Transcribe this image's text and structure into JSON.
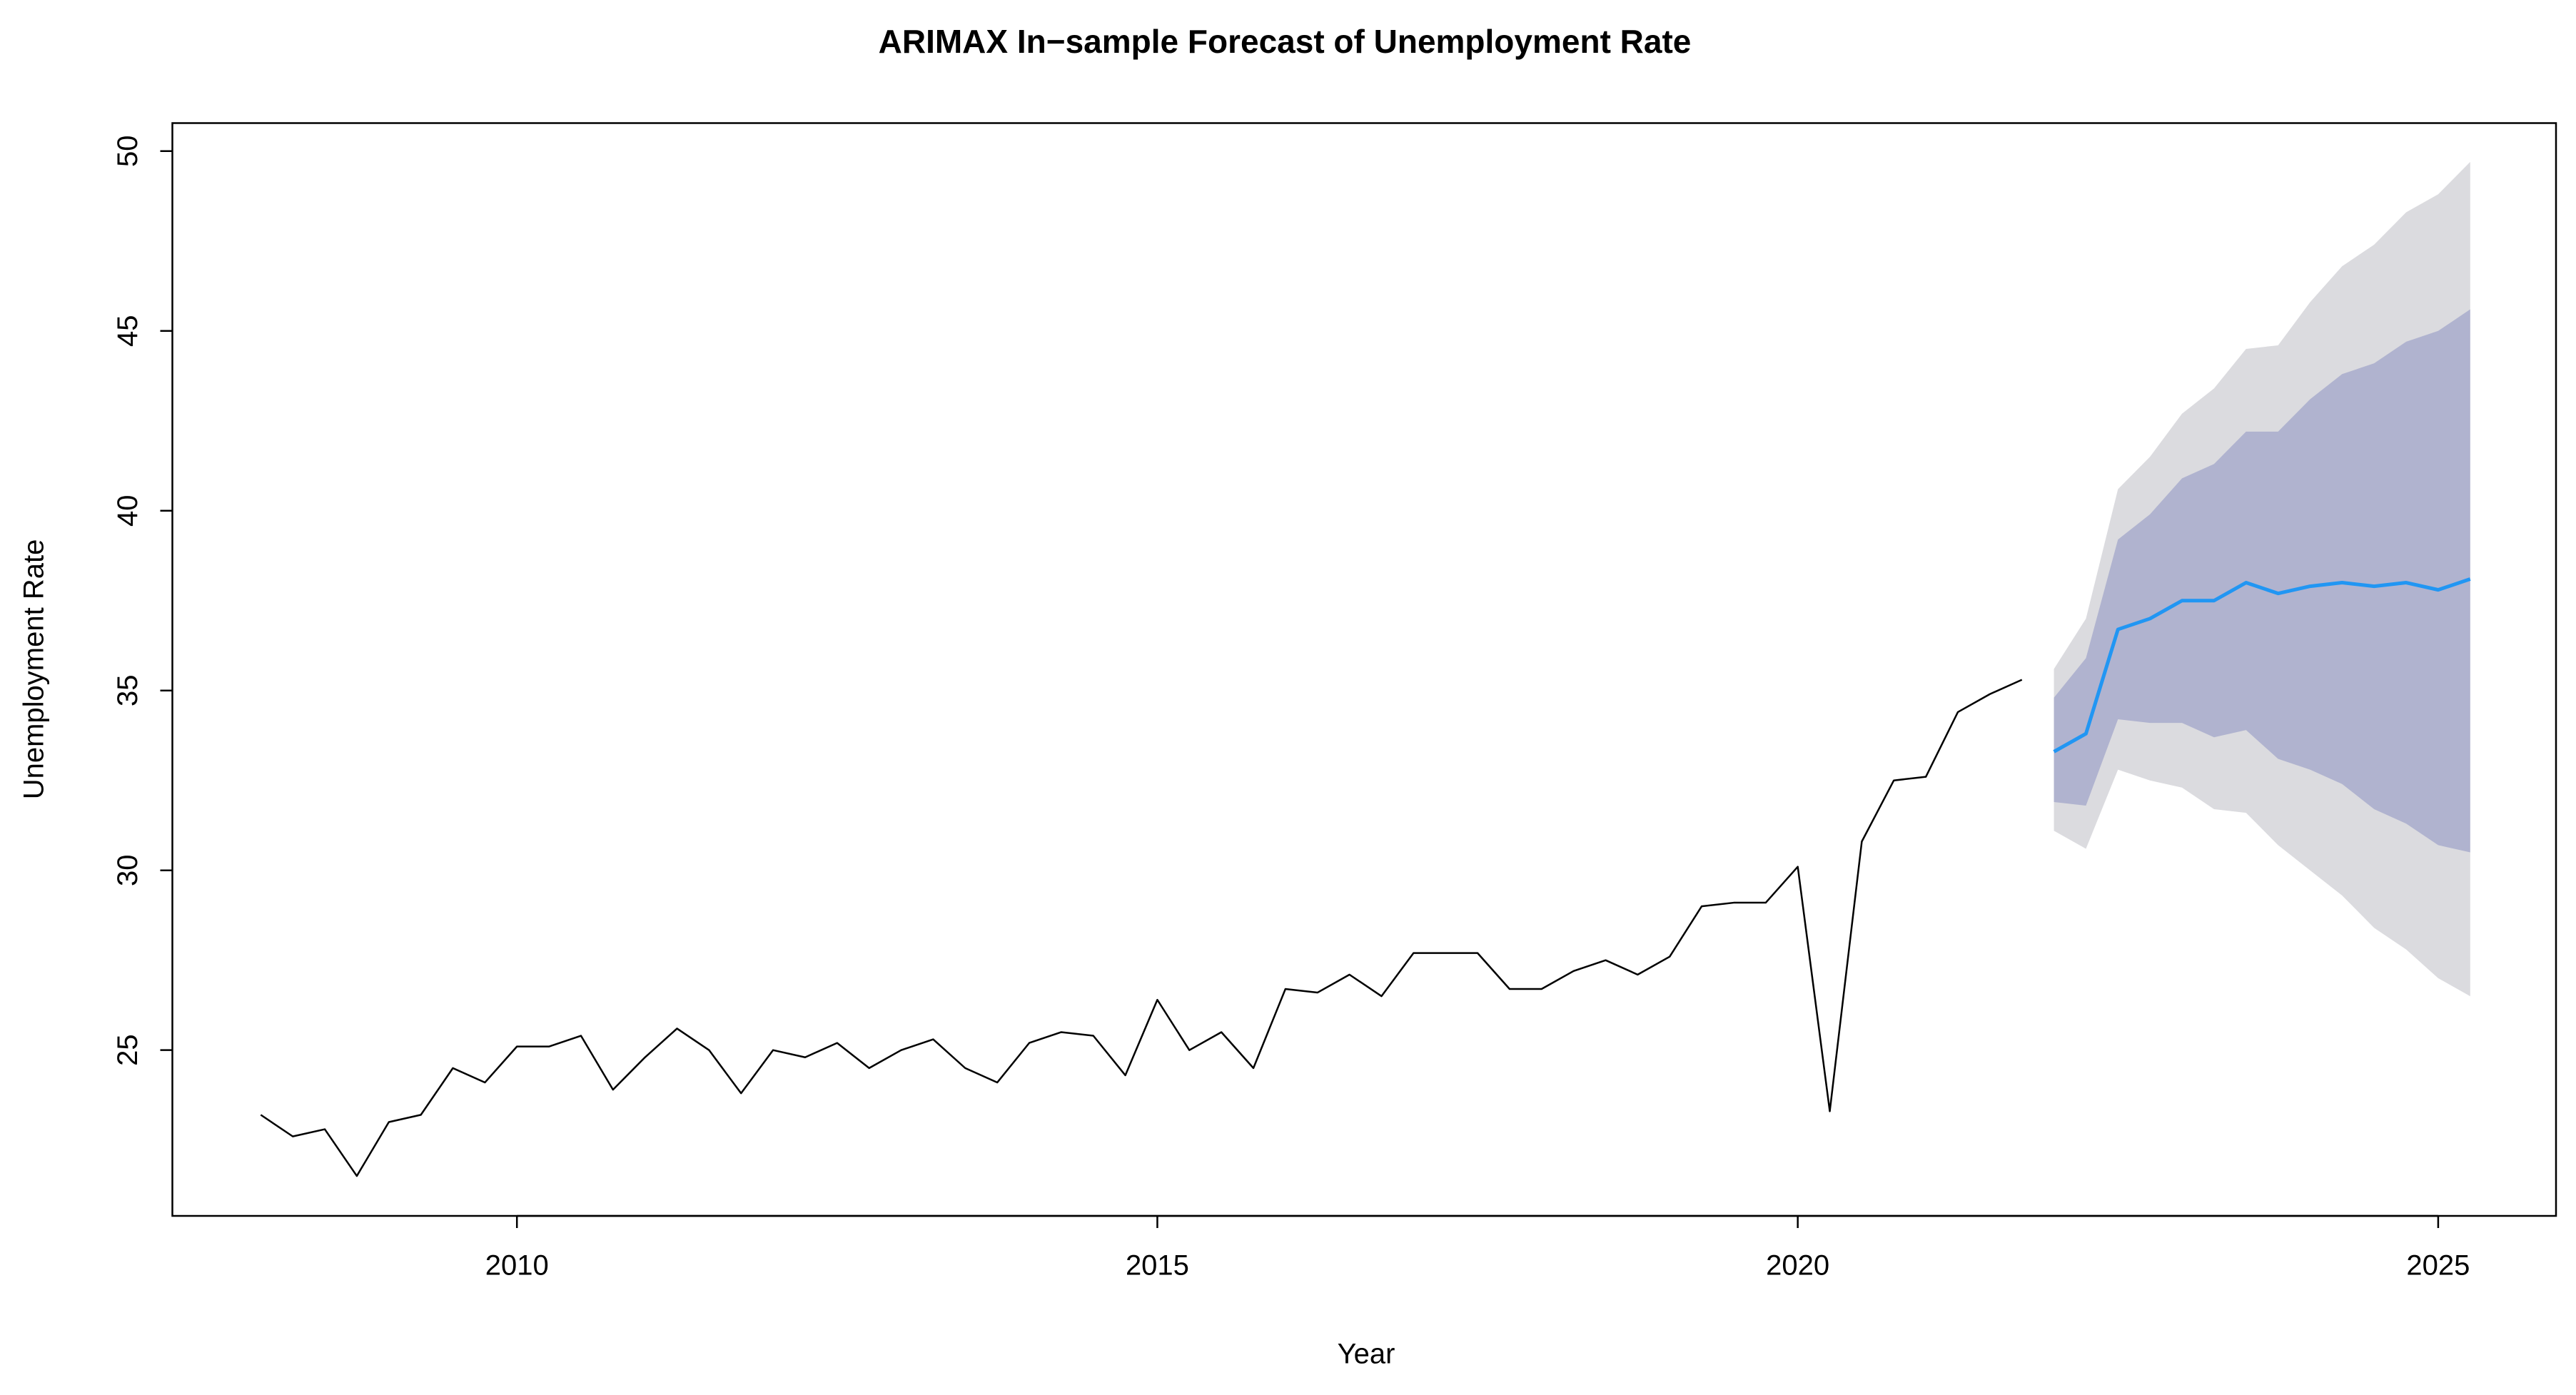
{
  "chart_data": {
    "type": "line",
    "title": "ARIMAX In−sample Forecast of Unemployment Rate",
    "xlabel": "Year",
    "ylabel": "Unemployment Rate",
    "xlim": [
      2007.31,
      2025.92
    ],
    "ylim": [
      20.39,
      50.78
    ],
    "xticks": [
      2010,
      2015,
      2020,
      2025
    ],
    "yticks": [
      25,
      30,
      35,
      40,
      45,
      50
    ],
    "bands": [
      {
        "color": "#dbdbdf",
        "x": [
          2022.0,
          2022.25,
          2022.5,
          2022.75,
          2023.0,
          2023.25,
          2023.5,
          2023.75,
          2024.0,
          2024.25,
          2024.5,
          2024.75,
          2025.0,
          2025.25
        ],
        "upper": [
          35.6,
          37.0,
          40.6,
          41.5,
          42.7,
          43.4,
          44.5,
          44.6,
          45.8,
          46.8,
          47.4,
          48.3,
          48.8,
          49.7
        ],
        "lower": [
          31.1,
          30.6,
          32.8,
          32.5,
          32.3,
          31.7,
          31.6,
          30.7,
          30.0,
          29.3,
          28.4,
          27.8,
          27.0,
          26.5
        ]
      },
      {
        "color": "#b0b3cf",
        "x": [
          2022.0,
          2022.25,
          2022.5,
          2022.75,
          2023.0,
          2023.25,
          2023.5,
          2023.75,
          2024.0,
          2024.25,
          2024.5,
          2024.75,
          2025.0,
          2025.25
        ],
        "upper": [
          34.8,
          35.9,
          39.2,
          39.9,
          40.9,
          41.3,
          42.2,
          42.2,
          43.1,
          43.8,
          44.1,
          44.7,
          45.0,
          45.6
        ],
        "lower": [
          31.9,
          31.8,
          34.2,
          34.1,
          34.1,
          33.7,
          33.9,
          33.1,
          32.8,
          32.4,
          31.7,
          31.3,
          30.7,
          30.5
        ]
      }
    ],
    "series": [
      {
        "color": "#000000",
        "width": 2.5,
        "x": [
          2008.0,
          2008.25,
          2008.5,
          2008.75,
          2009.0,
          2009.25,
          2009.5,
          2009.75,
          2010.0,
          2010.25,
          2010.5,
          2010.75,
          2011.0,
          2011.25,
          2011.5,
          2011.75,
          2012.0,
          2012.25,
          2012.5,
          2012.75,
          2013.0,
          2013.25,
          2013.5,
          2013.75,
          2014.0,
          2014.25,
          2014.5,
          2014.75,
          2015.0,
          2015.25,
          2015.5,
          2015.75,
          2016.0,
          2016.25,
          2016.5,
          2016.75,
          2017.0,
          2017.25,
          2017.5,
          2017.75,
          2018.0,
          2018.25,
          2018.5,
          2018.75,
          2019.0,
          2019.25,
          2019.5,
          2019.75,
          2020.0,
          2020.25,
          2020.5,
          2020.75,
          2021.0,
          2021.25,
          2021.5,
          2021.75
        ],
        "values": [
          23.2,
          22.6,
          22.8,
          21.5,
          23.0,
          23.2,
          24.5,
          24.1,
          25.1,
          25.1,
          25.4,
          23.9,
          24.8,
          25.6,
          25.0,
          23.8,
          25.0,
          24.8,
          25.2,
          24.5,
          25.0,
          25.3,
          24.5,
          24.1,
          25.2,
          25.5,
          25.4,
          24.3,
          26.4,
          25.0,
          25.5,
          24.5,
          26.7,
          26.6,
          27.1,
          26.5,
          27.7,
          27.7,
          27.7,
          26.7,
          26.7,
          27.2,
          27.5,
          27.1,
          27.6,
          29.0,
          29.1,
          29.1,
          30.1,
          23.3,
          30.8,
          32.5,
          32.6,
          34.4,
          34.9,
          35.3
        ]
      },
      {
        "color": "#2196f3",
        "width": 5,
        "x": [
          2022.0,
          2022.25,
          2022.5,
          2022.75,
          2023.0,
          2023.25,
          2023.5,
          2023.75,
          2024.0,
          2024.25,
          2024.5,
          2024.75,
          2025.0,
          2025.25
        ],
        "values": [
          33.3,
          33.8,
          36.7,
          37.0,
          37.5,
          37.5,
          38.0,
          37.7,
          37.9,
          38.0,
          37.9,
          38.0,
          37.8,
          38.1
        ]
      }
    ]
  }
}
